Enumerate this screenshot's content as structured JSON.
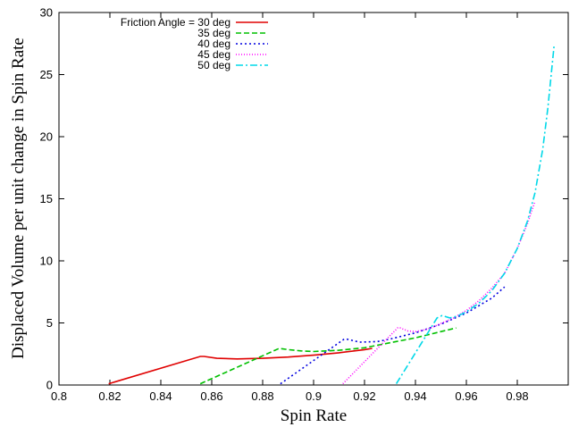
{
  "chart_data": {
    "type": "line",
    "title": "",
    "xlabel": "Spin Rate",
    "ylabel": "Displaced Volume per unit change in Spin Rate",
    "xlim": [
      0.8,
      1.0
    ],
    "ylim": [
      0,
      30
    ],
    "xticks": [
      0.8,
      0.82,
      0.84,
      0.86,
      0.88,
      0.9,
      0.92,
      0.94,
      0.96,
      0.98,
      1.0
    ],
    "xtick_labels": [
      "0.8",
      "0.82",
      "0.84",
      "0.86",
      "0.88",
      "0.9",
      "0.92",
      "0.94",
      "0.96",
      "0.98",
      ""
    ],
    "yticks": [
      0,
      5,
      10,
      15,
      20,
      25,
      30
    ],
    "ytick_labels": [
      "0",
      "5",
      "10",
      "15",
      "20",
      "25",
      "30"
    ],
    "grid": false,
    "legend_position": "top-left",
    "series": [
      {
        "name": "Friction Angle = 30 deg",
        "color": "#e00000",
        "dash": "solid",
        "x": [
          0.8195,
          0.8555,
          0.857,
          0.862,
          0.87,
          0.88,
          0.89,
          0.9,
          0.91,
          0.92,
          0.923
        ],
        "y": [
          0.1,
          2.3,
          2.3,
          2.15,
          2.1,
          2.15,
          2.25,
          2.4,
          2.6,
          2.85,
          2.95
        ]
      },
      {
        "name": "35 deg",
        "color": "#00c000",
        "dash": "6,3",
        "x": [
          0.8555,
          0.8865,
          0.89,
          0.895,
          0.9,
          0.91,
          0.92,
          0.93,
          0.94,
          0.95,
          0.956
        ],
        "y": [
          0.1,
          2.95,
          2.85,
          2.75,
          2.7,
          2.8,
          3.0,
          3.4,
          3.8,
          4.3,
          4.6
        ]
      },
      {
        "name": "40 deg",
        "color": "#0000e0",
        "dash": "2,3",
        "x": [
          0.887,
          0.912,
          0.913,
          0.918,
          0.925,
          0.93,
          0.94,
          0.95,
          0.96,
          0.97,
          0.975
        ],
        "y": [
          0.1,
          3.7,
          3.7,
          3.45,
          3.5,
          3.7,
          4.2,
          4.9,
          5.8,
          7.0,
          7.9
        ]
      },
      {
        "name": "45 deg",
        "color": "#ff00ff",
        "dash": "1,2",
        "x": [
          0.9115,
          0.933,
          0.934,
          0.937,
          0.94,
          0.945,
          0.95,
          0.955,
          0.96,
          0.965,
          0.97,
          0.975,
          0.98,
          0.984,
          0.987
        ],
        "y": [
          0.1,
          4.6,
          4.6,
          4.35,
          4.3,
          4.5,
          4.95,
          5.4,
          6.0,
          6.8,
          7.8,
          9.0,
          11.0,
          13.0,
          14.8
        ]
      },
      {
        "name": "50 deg",
        "color": "#00d8e8",
        "dash": "8,3,2,3",
        "x": [
          0.9325,
          0.9485,
          0.9505,
          0.9535,
          0.9565,
          0.96,
          0.965,
          0.97,
          0.975,
          0.98,
          0.984,
          0.987,
          0.99,
          0.992,
          0.9945
        ],
        "y": [
          0.1,
          5.4,
          5.6,
          5.4,
          5.55,
          5.9,
          6.6,
          7.6,
          9.0,
          11.0,
          13.2,
          15.5,
          19.0,
          22.3,
          27.4
        ]
      }
    ]
  }
}
